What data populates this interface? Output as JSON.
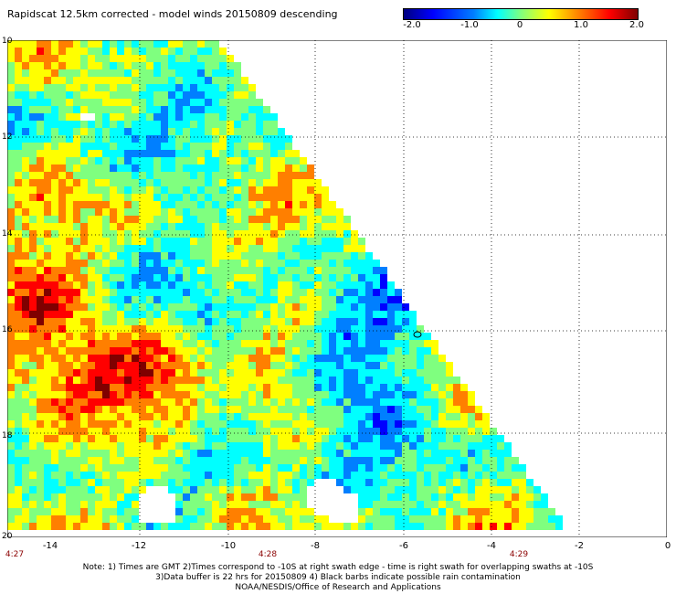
{
  "title": "Rapidscat 12.5km corrected - model winds 20150809 descending",
  "colorbar": {
    "labels": [
      "-2.0",
      "-1.0",
      "0",
      "1.0",
      "2.0"
    ],
    "min": -2.0,
    "max": 2.0
  },
  "map_axes": {
    "x_labels": [
      "-14",
      "-12",
      "-10",
      "-8",
      "-6",
      "-4",
      "-2",
      "0"
    ],
    "y_labels": [
      "10",
      "12",
      "14",
      "16",
      "18",
      "20"
    ],
    "time_labels": [
      "4:27",
      "4:28",
      "4:29"
    ]
  },
  "notes": {
    "line1": "Note: 1) Times are GMT 2)Times correspond to -10S at right swath edge - time is right swath for overlapping swaths at -10S",
    "line2": "3)Data buffer is 22 hrs for 20150809 4) Black barbs indicate possible rain contamination",
    "line3": "NOAA/NESDIS/Office of Research and Applications"
  },
  "colors": {
    "scale": [
      "#00007f",
      "#0000ff",
      "#007fff",
      "#00ffff",
      "#7fff7f",
      "#ffff00",
      "#ff7f00",
      "#ff0000",
      "#7f0000"
    ],
    "background": "#ffffff",
    "grid": "#000000"
  }
}
